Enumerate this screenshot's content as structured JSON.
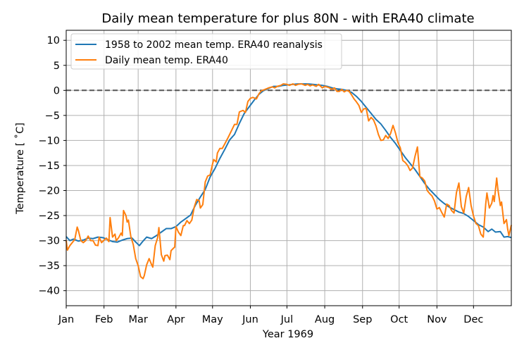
{
  "chart_data": {
    "type": "line",
    "title": "Daily mean temperature for plus 80N - with ERA40 climate",
    "xlabel": "Year 1969",
    "ylabel": "Temperature [$^\\circ$C]",
    "ylabel_display": "Temperature [ ˚C]",
    "xlim": [
      0,
      365
    ],
    "ylim": [
      -43,
      12
    ],
    "grid": true,
    "legend_position": "upper-left",
    "x_ticks": [
      {
        "day": 0,
        "label": "Jan"
      },
      {
        "day": 31,
        "label": "Feb"
      },
      {
        "day": 59,
        "label": "Mar"
      },
      {
        "day": 90,
        "label": "Apr"
      },
      {
        "day": 120,
        "label": "May"
      },
      {
        "day": 151,
        "label": "Jun"
      },
      {
        "day": 181,
        "label": "Jul"
      },
      {
        "day": 212,
        "label": "Aug"
      },
      {
        "day": 243,
        "label": "Sep"
      },
      {
        "day": 273,
        "label": "Oct"
      },
      {
        "day": 304,
        "label": "Nov"
      },
      {
        "day": 334,
        "label": "Dec"
      }
    ],
    "y_ticks": [
      10,
      5,
      0,
      -5,
      -10,
      -15,
      -20,
      -25,
      -30,
      -35,
      -40
    ],
    "reference_line": {
      "y": 0,
      "style": "dashed",
      "color": "#555555"
    },
    "series": [
      {
        "name": "1958 to 2002 mean temp. ERA40 reanalysis",
        "color": "#1f77b4",
        "points": [
          [
            0,
            -29.2
          ],
          [
            3,
            -30.0
          ],
          [
            6,
            -29.7
          ],
          [
            10,
            -30.1
          ],
          [
            14,
            -29.9
          ],
          [
            18,
            -29.5
          ],
          [
            22,
            -29.6
          ],
          [
            26,
            -29.3
          ],
          [
            30,
            -29.4
          ],
          [
            34,
            -29.8
          ],
          [
            38,
            -30.2
          ],
          [
            42,
            -30.3
          ],
          [
            46,
            -29.9
          ],
          [
            50,
            -29.6
          ],
          [
            54,
            -29.5
          ],
          [
            57,
            -30.3
          ],
          [
            60,
            -31.0
          ],
          [
            63,
            -30.1
          ],
          [
            66,
            -29.3
          ],
          [
            70,
            -29.6
          ],
          [
            74,
            -29.0
          ],
          [
            78,
            -28.3
          ],
          [
            82,
            -27.6
          ],
          [
            86,
            -27.6
          ],
          [
            90,
            -27.2
          ],
          [
            94,
            -26.3
          ],
          [
            98,
            -25.6
          ],
          [
            102,
            -24.9
          ],
          [
            106,
            -22.9
          ],
          [
            110,
            -21.3
          ],
          [
            114,
            -19.8
          ],
          [
            118,
            -17.3
          ],
          [
            122,
            -15.6
          ],
          [
            126,
            -13.6
          ],
          [
            130,
            -11.8
          ],
          [
            134,
            -9.9
          ],
          [
            138,
            -8.8
          ],
          [
            142,
            -6.6
          ],
          [
            146,
            -4.6
          ],
          [
            150,
            -3.3
          ],
          [
            154,
            -2.0
          ],
          [
            158,
            -0.8
          ],
          [
            162,
            0.0
          ],
          [
            166,
            0.4
          ],
          [
            170,
            0.8
          ],
          [
            174,
            0.8
          ],
          [
            178,
            1.0
          ],
          [
            182,
            1.1
          ],
          [
            186,
            1.2
          ],
          [
            190,
            1.3
          ],
          [
            194,
            1.3
          ],
          [
            198,
            1.3
          ],
          [
            202,
            1.2
          ],
          [
            206,
            1.1
          ],
          [
            210,
            1.0
          ],
          [
            214,
            0.8
          ],
          [
            218,
            0.5
          ],
          [
            222,
            0.3
          ],
          [
            226,
            0.2
          ],
          [
            230,
            0.0
          ],
          [
            234,
            -0.4
          ],
          [
            238,
            -1.2
          ],
          [
            242,
            -2.2
          ],
          [
            246,
            -3.4
          ],
          [
            250,
            -4.6
          ],
          [
            254,
            -5.8
          ],
          [
            258,
            -6.7
          ],
          [
            262,
            -8.0
          ],
          [
            266,
            -9.4
          ],
          [
            270,
            -10.6
          ],
          [
            274,
            -12.0
          ],
          [
            278,
            -13.4
          ],
          [
            282,
            -14.6
          ],
          [
            286,
            -15.8
          ],
          [
            290,
            -17.2
          ],
          [
            294,
            -18.6
          ],
          [
            298,
            -19.8
          ],
          [
            302,
            -20.8
          ],
          [
            306,
            -21.8
          ],
          [
            310,
            -22.6
          ],
          [
            314,
            -23.3
          ],
          [
            318,
            -23.8
          ],
          [
            322,
            -24.3
          ],
          [
            326,
            -24.6
          ],
          [
            330,
            -25.2
          ],
          [
            334,
            -26.0
          ],
          [
            338,
            -26.8
          ],
          [
            342,
            -27.3
          ],
          [
            346,
            -28.2
          ],
          [
            349,
            -27.7
          ],
          [
            352,
            -28.3
          ],
          [
            356,
            -28.2
          ],
          [
            359,
            -29.3
          ],
          [
            362,
            -29.2
          ],
          [
            365,
            -29.4
          ]
        ]
      },
      {
        "name": "Daily mean temp. ERA40",
        "color": "#ff7f0e",
        "points": [
          [
            0,
            -30.0
          ],
          [
            1,
            -31.9
          ],
          [
            3,
            -31.0
          ],
          [
            5,
            -30.4
          ],
          [
            7,
            -29.8
          ],
          [
            9,
            -27.3
          ],
          [
            10,
            -28.0
          ],
          [
            12,
            -30.0
          ],
          [
            14,
            -30.4
          ],
          [
            16,
            -30.0
          ],
          [
            18,
            -29.1
          ],
          [
            20,
            -30.0
          ],
          [
            22,
            -30.0
          ],
          [
            24,
            -30.9
          ],
          [
            26,
            -31.0
          ],
          [
            27,
            -29.3
          ],
          [
            29,
            -30.4
          ],
          [
            31,
            -29.9
          ],
          [
            33,
            -29.5
          ],
          [
            35,
            -30.2
          ],
          [
            36,
            -25.4
          ],
          [
            38,
            -29.3
          ],
          [
            40,
            -28.7
          ],
          [
            41,
            -30.0
          ],
          [
            43,
            -29.4
          ],
          [
            45,
            -28.5
          ],
          [
            46,
            -29.0
          ],
          [
            47,
            -24.0
          ],
          [
            49,
            -25.0
          ],
          [
            50,
            -26.3
          ],
          [
            51,
            -25.9
          ],
          [
            53,
            -29.2
          ],
          [
            55,
            -30.8
          ],
          [
            57,
            -33.6
          ],
          [
            59,
            -35.0
          ],
          [
            61,
            -37.2
          ],
          [
            63,
            -37.6
          ],
          [
            64,
            -37.0
          ],
          [
            66,
            -34.8
          ],
          [
            68,
            -33.6
          ],
          [
            70,
            -34.8
          ],
          [
            71,
            -35.3
          ],
          [
            73,
            -31.0
          ],
          [
            75,
            -29.4
          ],
          [
            76,
            -27.4
          ],
          [
            77,
            -30.0
          ],
          [
            78,
            -32.8
          ],
          [
            80,
            -34.1
          ],
          [
            81,
            -33.0
          ],
          [
            83,
            -32.9
          ],
          [
            85,
            -33.8
          ],
          [
            86,
            -32.0
          ],
          [
            88,
            -31.5
          ],
          [
            89,
            -31.3
          ],
          [
            90,
            -27.2
          ],
          [
            92,
            -28.3
          ],
          [
            94,
            -29.0
          ],
          [
            96,
            -27.0
          ],
          [
            97,
            -27.0
          ],
          [
            99,
            -26.0
          ],
          [
            101,
            -26.6
          ],
          [
            103,
            -25.9
          ],
          [
            105,
            -23.3
          ],
          [
            107,
            -21.8
          ],
          [
            109,
            -22.0
          ],
          [
            110,
            -23.5
          ],
          [
            112,
            -22.8
          ],
          [
            114,
            -18.3
          ],
          [
            116,
            -17.1
          ],
          [
            118,
            -16.9
          ],
          [
            120,
            -14.7
          ],
          [
            121,
            -13.8
          ],
          [
            123,
            -14.3
          ],
          [
            124,
            -12.5
          ],
          [
            126,
            -11.6
          ],
          [
            128,
            -11.6
          ],
          [
            130,
            -10.7
          ],
          [
            133,
            -9.3
          ],
          [
            136,
            -7.8
          ],
          [
            138,
            -6.8
          ],
          [
            140,
            -6.8
          ],
          [
            142,
            -4.3
          ],
          [
            145,
            -4.0
          ],
          [
            147,
            -4.4
          ],
          [
            149,
            -2.2
          ],
          [
            151,
            -1.6
          ],
          [
            153,
            -1.4
          ],
          [
            156,
            -1.7
          ],
          [
            158,
            -0.7
          ],
          [
            160,
            -0.1
          ],
          [
            163,
            0.2
          ],
          [
            166,
            0.5
          ],
          [
            169,
            0.7
          ],
          [
            171,
            0.5
          ],
          [
            173,
            0.8
          ],
          [
            176,
            1.0
          ],
          [
            178,
            1.3
          ],
          [
            181,
            1.2
          ],
          [
            183,
            1.0
          ],
          [
            186,
            1.3
          ],
          [
            188,
            1.0
          ],
          [
            190,
            1.2
          ],
          [
            193,
            1.3
          ],
          [
            196,
            1.0
          ],
          [
            198,
            1.2
          ],
          [
            200,
            0.9
          ],
          [
            202,
            1.1
          ],
          [
            205,
            0.8
          ],
          [
            207,
            1.2
          ],
          [
            210,
            0.5
          ],
          [
            212,
            0.8
          ],
          [
            215,
            0.6
          ],
          [
            218,
            0.2
          ],
          [
            220,
            0.5
          ],
          [
            222,
            -0.2
          ],
          [
            224,
            -0.2
          ],
          [
            226,
            0.2
          ],
          [
            228,
            -0.3
          ],
          [
            230,
            0.0
          ],
          [
            232,
            -0.2
          ],
          [
            234,
            -0.9
          ],
          [
            236,
            -1.7
          ],
          [
            238,
            -2.3
          ],
          [
            240,
            -3.0
          ],
          [
            242,
            -4.4
          ],
          [
            244,
            -3.7
          ],
          [
            246,
            -3.6
          ],
          [
            248,
            -6.1
          ],
          [
            250,
            -5.4
          ],
          [
            252,
            -5.9
          ],
          [
            254,
            -7.1
          ],
          [
            256,
            -8.8
          ],
          [
            258,
            -10.0
          ],
          [
            260,
            -9.9
          ],
          [
            262,
            -9.0
          ],
          [
            264,
            -9.6
          ],
          [
            266,
            -8.6
          ],
          [
            268,
            -7.0
          ],
          [
            270,
            -8.5
          ],
          [
            272,
            -10.4
          ],
          [
            274,
            -11.5
          ],
          [
            276,
            -14.0
          ],
          [
            278,
            -14.4
          ],
          [
            280,
            -15.0
          ],
          [
            282,
            -16.0
          ],
          [
            284,
            -15.5
          ],
          [
            286,
            -13.2
          ],
          [
            288,
            -11.3
          ],
          [
            290,
            -17.2
          ],
          [
            292,
            -17.5
          ],
          [
            294,
            -18.1
          ],
          [
            296,
            -20.0
          ],
          [
            298,
            -20.6
          ],
          [
            300,
            -21.1
          ],
          [
            302,
            -22.1
          ],
          [
            304,
            -23.7
          ],
          [
            306,
            -23.4
          ],
          [
            308,
            -24.4
          ],
          [
            310,
            -25.3
          ],
          [
            312,
            -22.7
          ],
          [
            314,
            -23.0
          ],
          [
            316,
            -24.0
          ],
          [
            318,
            -24.5
          ],
          [
            320,
            -20.4
          ],
          [
            322,
            -18.5
          ],
          [
            324,
            -23.2
          ],
          [
            326,
            -24.5
          ],
          [
            328,
            -21.2
          ],
          [
            330,
            -19.4
          ],
          [
            332,
            -23.0
          ],
          [
            334,
            -25.1
          ],
          [
            336,
            -26.6
          ],
          [
            338,
            -27.0
          ],
          [
            340,
            -28.7
          ],
          [
            342,
            -29.3
          ],
          [
            344,
            -22.7
          ],
          [
            345,
            -20.5
          ],
          [
            347,
            -23.5
          ],
          [
            349,
            -22.5
          ],
          [
            350,
            -21.0
          ],
          [
            351,
            -22.2
          ],
          [
            353,
            -17.5
          ],
          [
            354,
            -19.8
          ],
          [
            356,
            -23.0
          ],
          [
            357,
            -22.3
          ],
          [
            359,
            -26.6
          ],
          [
            361,
            -25.8
          ],
          [
            362,
            -27.7
          ],
          [
            363,
            -29.0
          ],
          [
            365,
            -26.9
          ]
        ]
      }
    ]
  }
}
